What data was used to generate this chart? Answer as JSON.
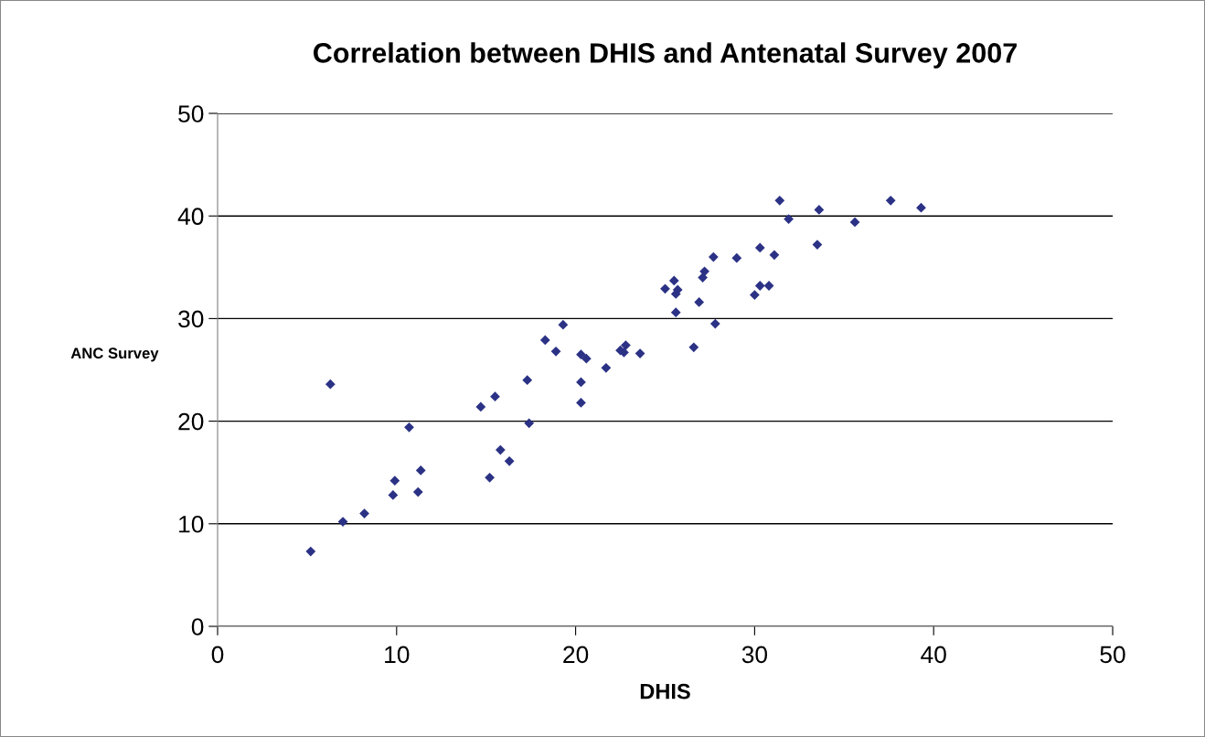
{
  "chart_data": {
    "type": "scatter",
    "title": "Correlation between DHIS and Antenatal Survey 2007",
    "xlabel": "DHIS",
    "ylabel": "ANC Survey",
    "xlim": [
      0,
      50
    ],
    "xticks": [
      0,
      10,
      20,
      30,
      40,
      50
    ],
    "ylim": [
      0,
      50
    ],
    "yticks": [
      0,
      10,
      20,
      30,
      40,
      50
    ],
    "grid": "y",
    "legend": false,
    "marker": "diamond",
    "series": [
      {
        "color": "#2b3285",
        "x": [
          5.2,
          6.3,
          7.0,
          8.2,
          9.9,
          9.8,
          10.7,
          11.35,
          11.2,
          14.7,
          15.5,
          15.2,
          15.8,
          16.3,
          17.3,
          17.4,
          18.3,
          18.9,
          19.3,
          20.3,
          20.6,
          20.3,
          20.3,
          21.7,
          22.5,
          22.8,
          22.7,
          23.6,
          26.6,
          25.0,
          25.5,
          25.7,
          25.6,
          25.6,
          26.9,
          27.1,
          27.2,
          27.7,
          27.8,
          29.0,
          30.0,
          30.3,
          30.8,
          30.3,
          31.1,
          31.4,
          31.9,
          33.5,
          33.6,
          35.6,
          37.6,
          39.3
        ],
        "values": [
          7.3,
          23.6,
          10.2,
          11.0,
          14.2,
          12.8,
          19.4,
          15.2,
          13.1,
          21.4,
          22.4,
          14.5,
          17.2,
          16.1,
          24.0,
          19.8,
          27.9,
          26.8,
          29.4,
          26.5,
          26.1,
          23.8,
          21.8,
          25.2,
          26.9,
          27.4,
          26.7,
          26.6,
          27.2,
          32.9,
          33.7,
          32.8,
          32.4,
          30.6,
          31.6,
          34.0,
          34.6,
          36.0,
          29.5,
          35.9,
          32.3,
          33.2,
          33.2,
          36.9,
          36.2,
          41.5,
          39.7,
          37.2,
          40.6,
          39.4,
          41.5,
          40.8
        ]
      }
    ]
  }
}
